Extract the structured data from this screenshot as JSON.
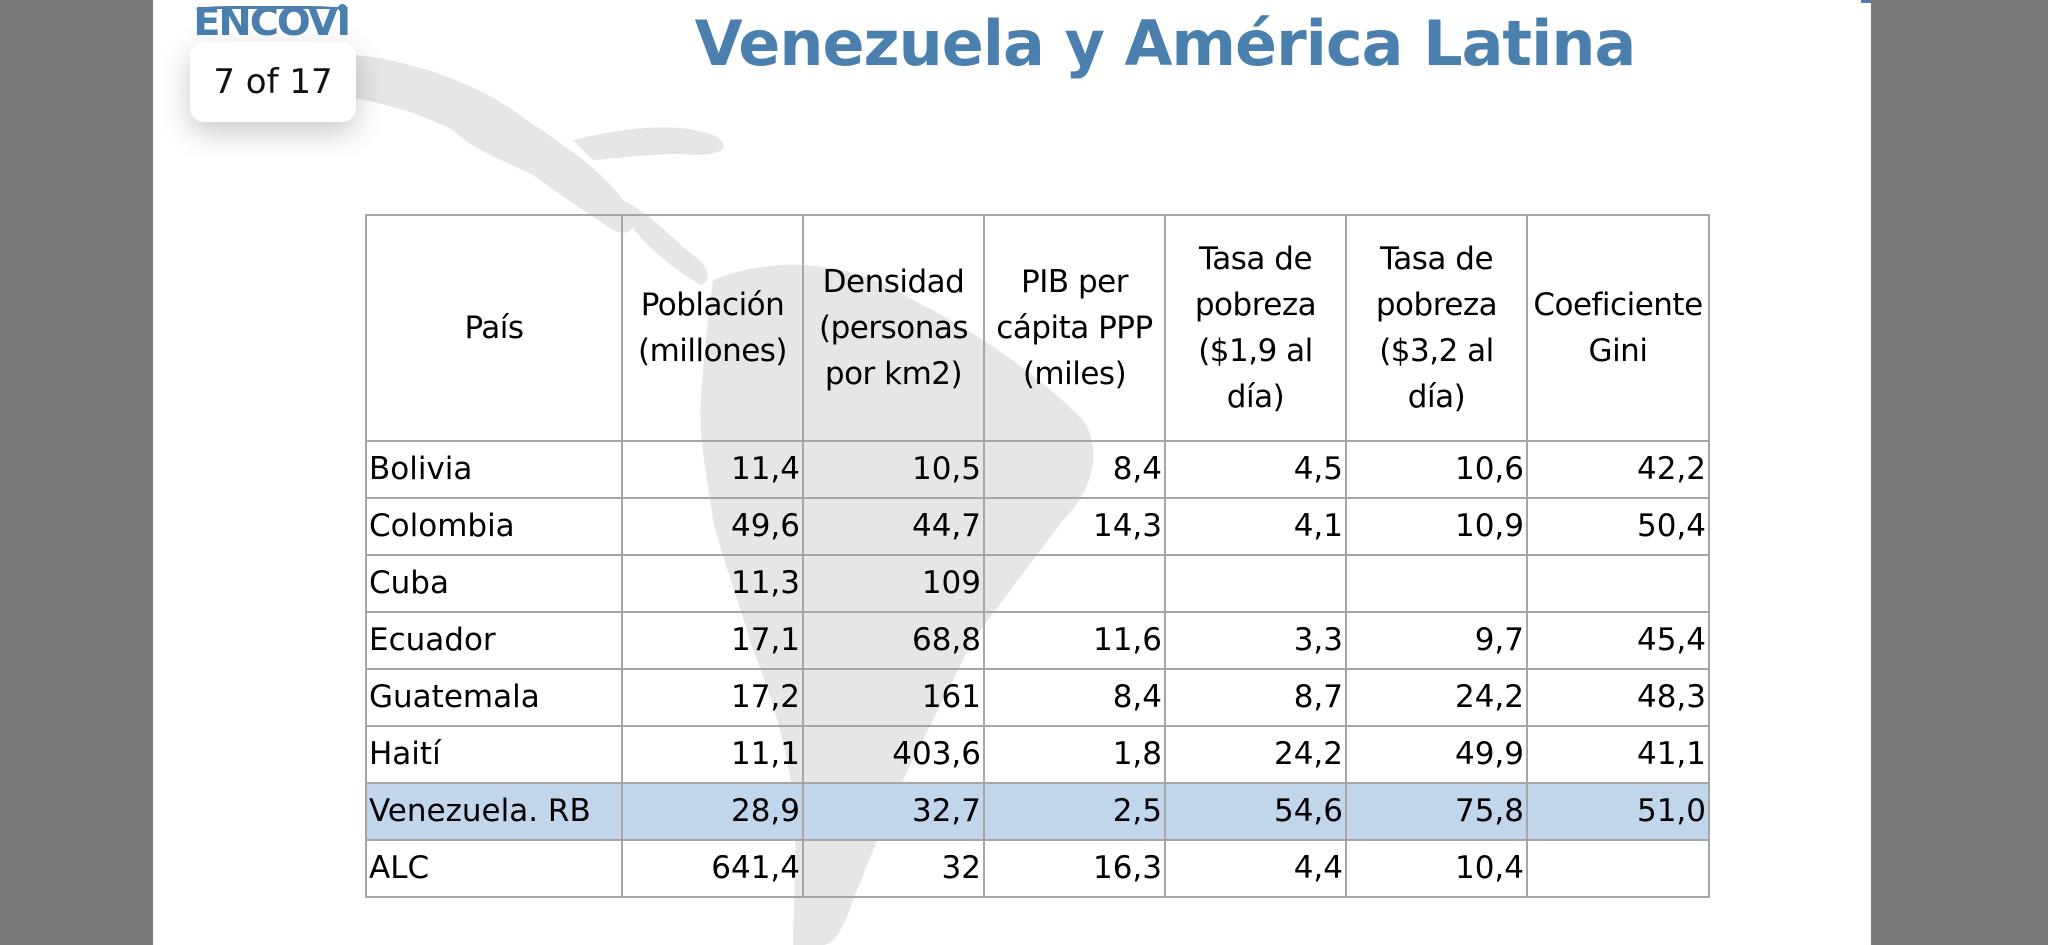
{
  "logo": {
    "text": "ENCOVI"
  },
  "page_indicator": "7 of 17",
  "title": "Venezuela y América Latina",
  "table": {
    "headers": [
      "País",
      "Población (millones)",
      "Densidad (personas por km2)",
      "PIB per cápita PPP (miles)",
      "Tasa de pobreza ($1,9 al día)",
      "Tasa de pobreza ($3,2 al día)",
      "Coeficiente Gini"
    ],
    "rows": [
      [
        "Bolivia",
        "11,4",
        "10,5",
        "8,4",
        "4,5",
        "10,6",
        "42,2"
      ],
      [
        "Colombia",
        "49,6",
        "44,7",
        "14,3",
        "4,1",
        "10,9",
        "50,4"
      ],
      [
        "Cuba",
        "11,3",
        "109",
        "",
        "",
        "",
        ""
      ],
      [
        "Ecuador",
        "17,1",
        "68,8",
        "11,6",
        "3,3",
        "9,7",
        "45,4"
      ],
      [
        "Guatemala",
        "17,2",
        "161",
        "8,4",
        "8,7",
        "24,2",
        "48,3"
      ],
      [
        "Haití",
        "11,1",
        "403,6",
        "1,8",
        "24,2",
        "49,9",
        "41,1"
      ],
      [
        "Venezuela. RB",
        "28,9",
        "32,7",
        "2,5",
        "54,6",
        "75,8",
        "51,0"
      ],
      [
        "ALC",
        "641,4",
        "32",
        "16,3",
        "4,4",
        "10,4",
        ""
      ]
    ],
    "highlight_color": "#c1d6eb"
  },
  "colors": {
    "title": "#4a7fae",
    "background": "#7a7a7a",
    "slide": "#ffffff"
  }
}
